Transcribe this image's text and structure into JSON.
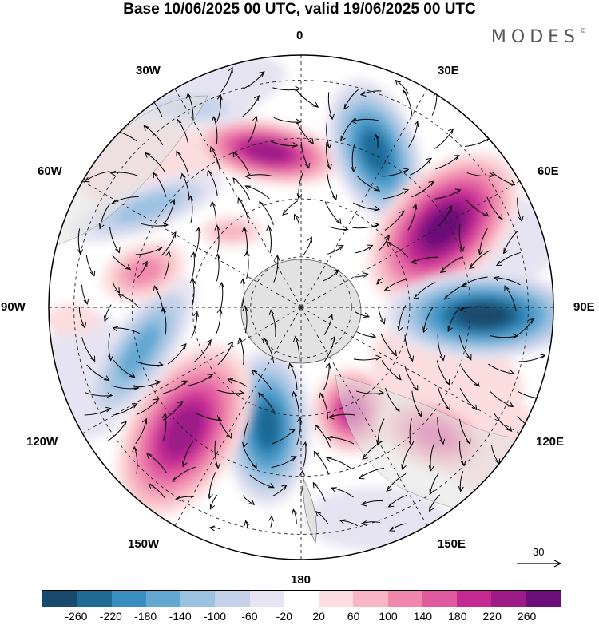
{
  "title": "Base 10/06/2025 00 UTC, valid 19/06/2025 00 UTC",
  "brand": "MODES",
  "brand_mark": "©",
  "lon_labels": {
    "l0": "0",
    "l30e": "30E",
    "l60e": "60E",
    "l90e": "90E",
    "l120e": "120E",
    "l150e": "150E",
    "l180": "180",
    "l150w": "150W",
    "l120w": "120W",
    "l90w": "90W",
    "l60w": "60W",
    "l30w": "30W"
  },
  "vector_reference": "30",
  "colorbar": {
    "colors": [
      "#1a4a6b",
      "#1e6b96",
      "#3a8fc0",
      "#64a8d2",
      "#9cc2e2",
      "#c4d1e8",
      "#e6e4f2",
      "#ffffff",
      "#fcdede",
      "#f7b6c2",
      "#f088ad",
      "#e05aa0",
      "#c52a93",
      "#9c1b88",
      "#6a1078"
    ],
    "tick_labels": [
      "-260",
      "-220",
      "-180",
      "-140",
      "-100",
      "-60",
      "-20",
      "20",
      "60",
      "100",
      "140",
      "180",
      "220",
      "260"
    ]
  },
  "map_colors": {
    "strong_neg": "#1a4a6b",
    "neg2": "#1e6b96",
    "neg3": "#3a8fc0",
    "neg4": "#64a8d2",
    "neg5": "#9cc2e2",
    "neg6": "#c4d1e8",
    "weak_neg": "#e6e4f2",
    "weak_pos": "#fcdede",
    "pos2": "#f7b6c2",
    "pos3": "#f088ad",
    "pos4": "#e05aa0",
    "pos5": "#c52a93",
    "pos6": "#9c1b88",
    "strong_pos": "#6a1078",
    "land": "#e2e2e2"
  }
}
